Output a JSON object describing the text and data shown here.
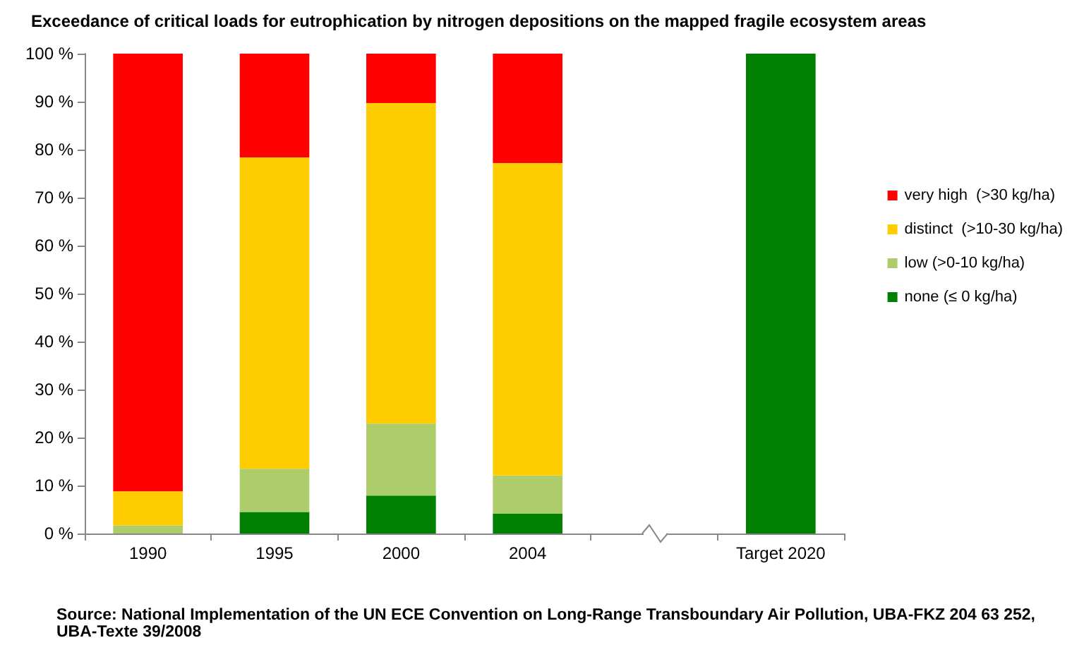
{
  "chart_data": {
    "type": "bar",
    "title": "Exceedance of critical loads for eutrophication by nitrogen depositions on the mapped fragile ecosystem areas",
    "categories": [
      "1990",
      "1995",
      "2000",
      "2004",
      null,
      "Target 2020"
    ],
    "stacked": true,
    "series": [
      {
        "name": "none (≤ 0 kg/ha)",
        "color": "#008000",
        "values": [
          0,
          4.5,
          7.9,
          4.1,
          null,
          100
        ]
      },
      {
        "name": "low (>0-10 kg/ha)",
        "color": "#adcd6a",
        "values": [
          1.7,
          9,
          15,
          8,
          null,
          null
        ]
      },
      {
        "name": "distinct  (>10-30 kg/ha)",
        "color": "#ffcc00",
        "values": [
          7.1,
          64.9,
          66.8,
          65.1,
          null,
          null
        ]
      },
      {
        "name": "very high  (>30 kg/ha)",
        "color": "#ff0000",
        "values": [
          91.2,
          21.6,
          10.3,
          22.8,
          null,
          null
        ]
      }
    ],
    "ylim": [
      0,
      100
    ],
    "yticks": [
      {
        "value": 0,
        "label": "0 %"
      },
      {
        "value": 10,
        "label": "10 %"
      },
      {
        "value": 20,
        "label": "20 %"
      },
      {
        "value": 30,
        "label": "30 %"
      },
      {
        "value": 40,
        "label": "40 %"
      },
      {
        "value": 50,
        "label": "50 %"
      },
      {
        "value": 60,
        "label": "60 %"
      },
      {
        "value": 70,
        "label": "70 %"
      },
      {
        "value": 80,
        "label": "80 %"
      },
      {
        "value": 90,
        "label": "90 %"
      },
      {
        "value": 100,
        "label": "100 %"
      }
    ],
    "grid": false,
    "legend": "right",
    "annotations": [
      "Source: National Implementation of the UN ECE  Convention on Long-Range Transboundary Air Pollution, UBA-FKZ 204 63 252, UBA-Texte 39/2008"
    ]
  }
}
